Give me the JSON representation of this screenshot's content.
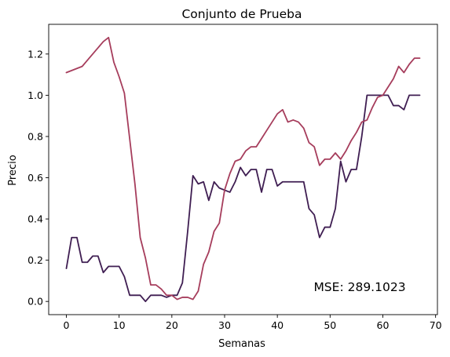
{
  "chart_data": {
    "type": "line",
    "title": "Conjunto de Prueba",
    "xlabel": "Semanas",
    "ylabel": "Precio",
    "xlim": [
      -3.35,
      70.35
    ],
    "ylim": [
      -0.064,
      1.344
    ],
    "xticks": [
      0,
      10,
      20,
      30,
      40,
      50,
      60,
      70
    ],
    "yticks": [
      0.0,
      0.2,
      0.4,
      0.6,
      0.8,
      1.0,
      1.2
    ],
    "ytick_labels": [
      "0.0",
      "0.2",
      "0.4",
      "0.6",
      "0.8",
      "1.0",
      "1.2"
    ],
    "grid": false,
    "annotation": "MSE: 289.1023",
    "series": [
      {
        "color": "#3f1e52",
        "values": [
          0.16,
          0.31,
          0.31,
          0.19,
          0.19,
          0.22,
          0.22,
          0.14,
          0.17,
          0.17,
          0.17,
          0.12,
          0.03,
          0.03,
          0.03,
          0.0,
          0.03,
          0.03,
          0.03,
          0.02,
          0.03,
          0.03,
          0.09,
          0.34,
          0.61,
          0.57,
          0.58,
          0.49,
          0.58,
          0.55,
          0.54,
          0.53,
          0.58,
          0.65,
          0.61,
          0.64,
          0.64,
          0.53,
          0.64,
          0.64,
          0.56,
          0.58,
          0.58,
          0.58,
          0.58,
          0.58,
          0.45,
          0.42,
          0.31,
          0.36,
          0.36,
          0.45,
          0.68,
          0.58,
          0.64,
          0.64,
          0.8,
          1.0,
          1.0,
          1.0,
          1.0,
          1.0,
          0.95,
          0.95,
          0.93,
          1.0,
          1.0,
          1.0
        ]
      },
      {
        "color": "#a63d5c",
        "values": [
          1.11,
          1.12,
          1.13,
          1.14,
          1.17,
          1.2,
          1.23,
          1.26,
          1.28,
          1.16,
          1.09,
          1.01,
          0.79,
          0.57,
          0.31,
          0.21,
          0.08,
          0.08,
          0.06,
          0.03,
          0.03,
          0.01,
          0.02,
          0.02,
          0.01,
          0.05,
          0.18,
          0.24,
          0.34,
          0.38,
          0.54,
          0.62,
          0.68,
          0.69,
          0.73,
          0.75,
          0.75,
          0.79,
          0.83,
          0.87,
          0.91,
          0.93,
          0.87,
          0.88,
          0.87,
          0.84,
          0.77,
          0.75,
          0.66,
          0.69,
          0.69,
          0.72,
          0.69,
          0.73,
          0.78,
          0.82,
          0.87,
          0.88,
          0.94,
          0.99,
          1.0,
          1.04,
          1.08,
          1.14,
          1.11,
          1.15,
          1.18,
          1.18
        ]
      }
    ]
  }
}
